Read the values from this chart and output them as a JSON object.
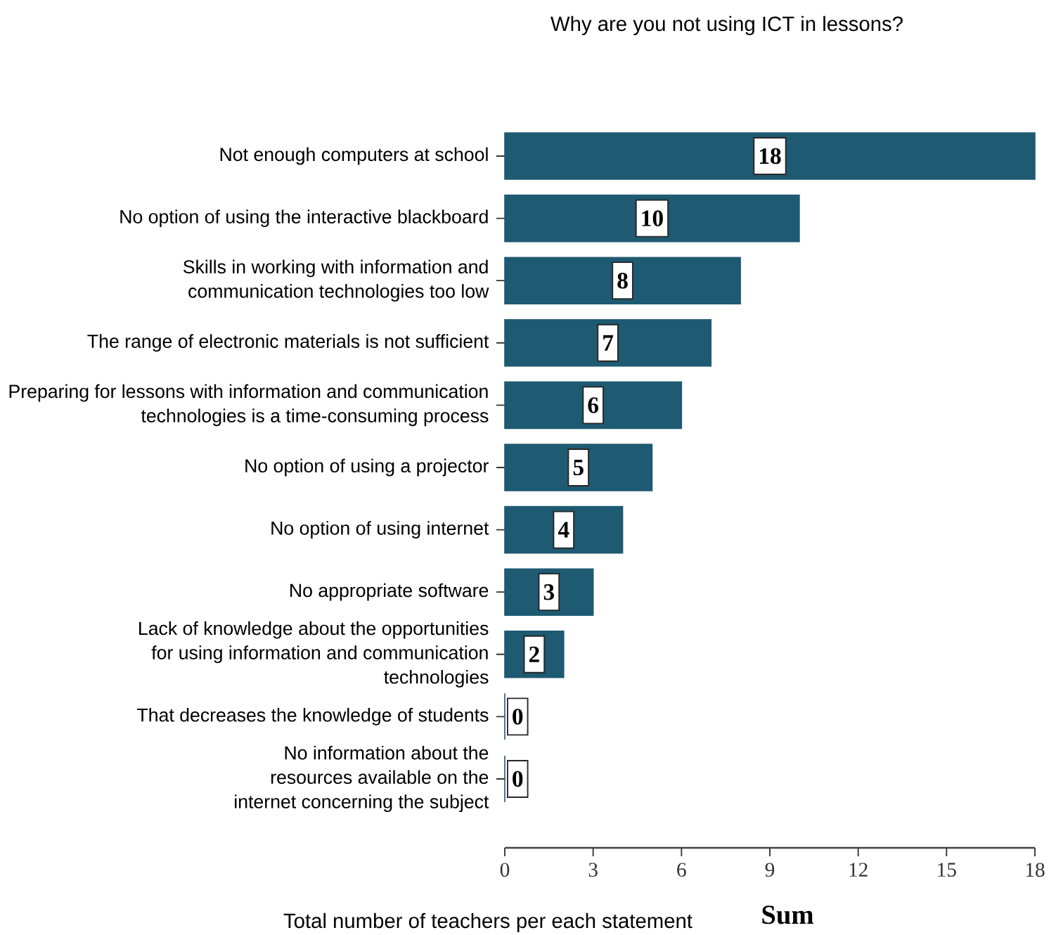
{
  "chart_data": {
    "type": "bar",
    "orientation": "horizontal",
    "title": "Why are you not using ICT in lessons?",
    "xlabel": "Sum",
    "annotations": [
      "Total number of teachers per each statement"
    ],
    "categories": [
      "Not enough computers at school",
      "No option of using the interactive blackboard",
      "Skills in working with information and communication technologies too low",
      "The range of electronic materials is not sufficient",
      "Preparing for lessons with information and communication technologies is a time-consuming process",
      "No option of using a projector",
      "No option of using internet",
      "No appropriate software",
      "Lack of knowledge about the opportunities for using information and communication technologies",
      "That decreases the knowledge of students",
      "No information about the resources available on the internet concerning the subject"
    ],
    "values": [
      18,
      10,
      8,
      7,
      6,
      5,
      4,
      3,
      2,
      0,
      0
    ],
    "color": "#1e5a72",
    "xlim": [
      0,
      18
    ],
    "xticks": [
      0,
      3,
      6,
      9,
      12,
      15,
      18
    ],
    "data_labels": true
  }
}
